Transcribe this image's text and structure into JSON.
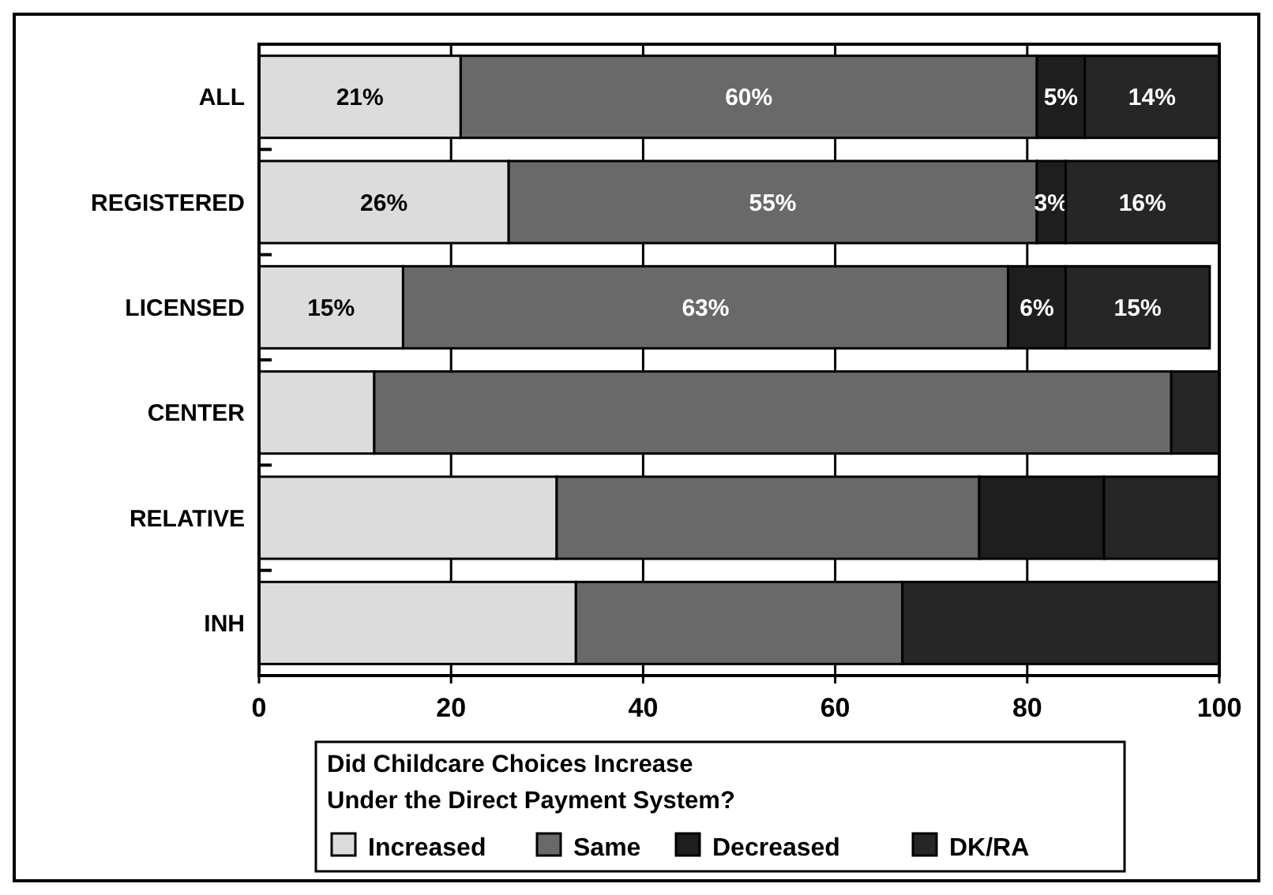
{
  "chart_data": {
    "type": "bar",
    "orientation": "horizontal",
    "stacked": true,
    "categories": [
      "ALL",
      "REGISTERED",
      "LICENSED",
      "CENTER",
      "RELATIVE",
      "INH"
    ],
    "series": [
      {
        "name": "Increased",
        "color": "#dcdcdc",
        "values": [
          21,
          26,
          15,
          12,
          31,
          33
        ],
        "value_labels": [
          "21%",
          "26%",
          "15%",
          null,
          null,
          null
        ]
      },
      {
        "name": "Same",
        "color": "#696969",
        "values": [
          60,
          55,
          63,
          83,
          44,
          34
        ],
        "value_labels": [
          "60%",
          "55%",
          "63%",
          null,
          null,
          null
        ]
      },
      {
        "name": "Decreased",
        "color": "#1e1e1e",
        "values": [
          5,
          3,
          6,
          0,
          13,
          0
        ],
        "value_labels": [
          "5%",
          "3%",
          "6%",
          null,
          null,
          null
        ]
      },
      {
        "name": "DK/RA",
        "color": "#262626",
        "values": [
          14,
          16,
          15,
          5,
          12,
          33
        ],
        "value_labels": [
          "14%",
          "16%",
          "15%",
          null,
          null,
          null
        ]
      }
    ],
    "xlim": [
      0,
      100
    ],
    "xticks": [
      0,
      20,
      40,
      60,
      80,
      100
    ],
    "grid": "x",
    "legend": "bottom",
    "legend_title": "Did Childcare Choices Increase\nUnder the Direct Payment System?"
  }
}
